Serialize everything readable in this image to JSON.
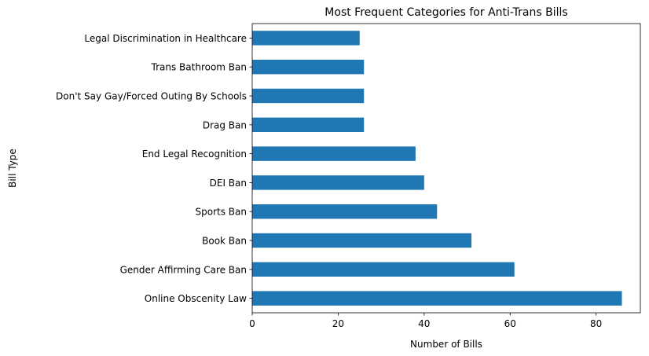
{
  "chart_data": {
    "type": "bar",
    "orientation": "horizontal",
    "title": "Most Frequent Categories for Anti-Trans Bills",
    "xlabel": "Number of Bills",
    "ylabel": "Bill Type",
    "categories": [
      "Online Obscenity Law",
      "Gender Affirming Care Ban",
      "Book Ban",
      "Sports Ban",
      "DEI Ban",
      "End Legal Recognition",
      "Drag Ban",
      "Don't Say Gay/Forced Outing By Schools",
      "Trans Bathroom Ban",
      "Legal Discrimination in Healthcare"
    ],
    "values": [
      86,
      61,
      51,
      43,
      40,
      38,
      26,
      26,
      26,
      25
    ],
    "xlim": [
      0,
      90.3
    ],
    "xticks": [
      0,
      20,
      40,
      60,
      80
    ],
    "grid": false,
    "legend": "none",
    "bar_color": "#1f77b4"
  }
}
